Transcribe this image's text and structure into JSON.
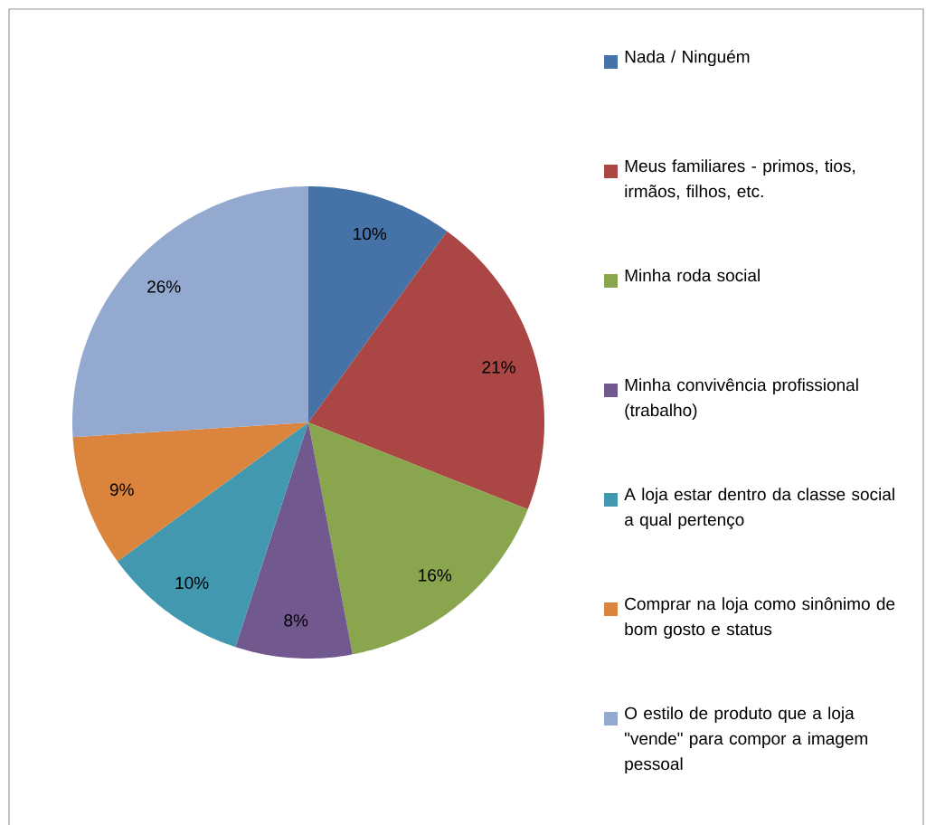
{
  "chart_data": {
    "type": "pie",
    "categories": [
      "Nada / Ninguém",
      "Meus familiares - primos, tios, irmãos, filhos, etc.",
      "Minha roda social",
      "Minha convivência profissional (trabalho)",
      "A loja estar dentro da classe social a qual pertenço",
      "Comprar na loja como sinônimo de bom gosto e status",
      "O estilo de produto que a loja \"vende\" para compor a imagem pessoal"
    ],
    "values": [
      10,
      21,
      16,
      8,
      10,
      9,
      26
    ],
    "value_labels": [
      "10%",
      "21%",
      "16%",
      "8%",
      "10%",
      "9%",
      "26%"
    ],
    "colors": [
      "#4572a7",
      "#aa4643",
      "#89a54e",
      "#71588f",
      "#4198af",
      "#db843d",
      "#93a9cf"
    ],
    "legend": "right"
  }
}
